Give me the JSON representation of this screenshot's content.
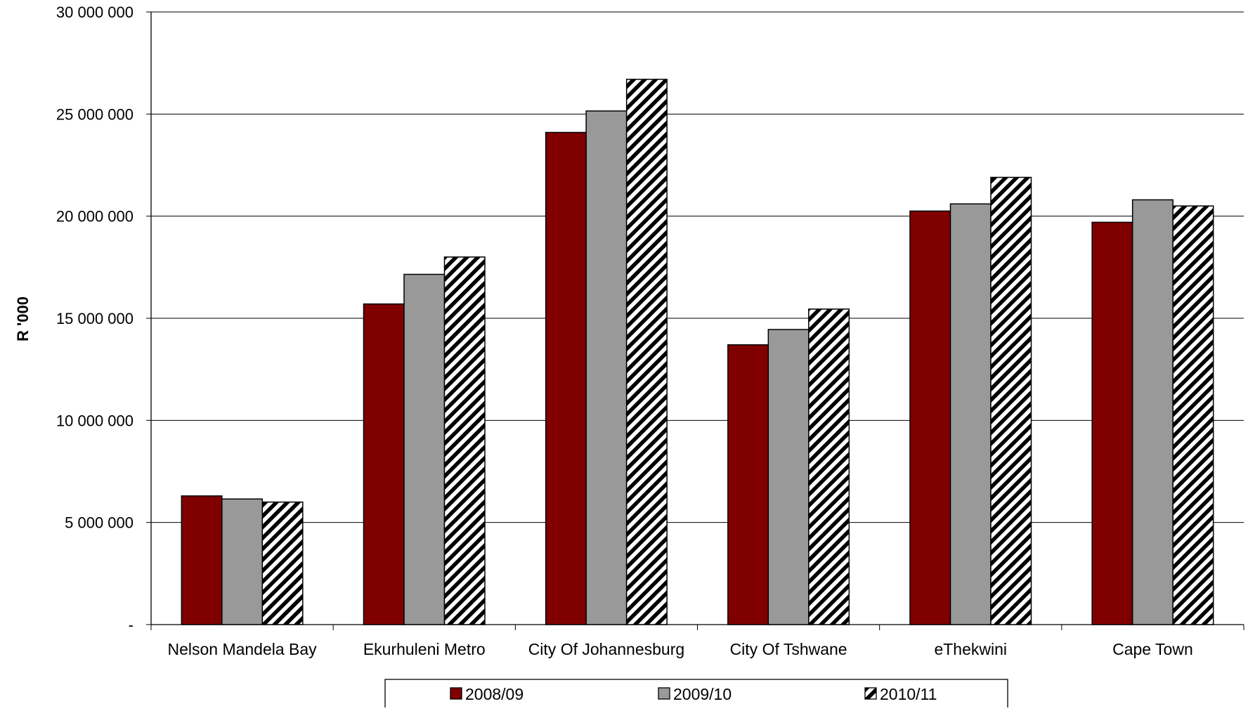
{
  "chart_data": {
    "type": "bar",
    "title": "",
    "xlabel": "",
    "ylabel": "R '000",
    "ylim": [
      0,
      30000000
    ],
    "yticks": [
      {
        "value": 0,
        "label": "-"
      },
      {
        "value": 5000000,
        "label": "5 000 000"
      },
      {
        "value": 10000000,
        "label": "10 000 000"
      },
      {
        "value": 15000000,
        "label": "15 000 000"
      },
      {
        "value": 20000000,
        "label": "20 000 000"
      },
      {
        "value": 25000000,
        "label": "25 000 000"
      },
      {
        "value": 30000000,
        "label": "30 000 000"
      }
    ],
    "grid": true,
    "legend_position": "bottom",
    "categories": [
      "Nelson Mandela Bay",
      "Ekurhuleni Metro",
      "City Of Johannesburg",
      "City Of Tshwane",
      "eThekwini",
      "Cape Town"
    ],
    "series": [
      {
        "name": "2008/09",
        "fill": "solid",
        "color": "#800000",
        "values": [
          6300000,
          15700000,
          24100000,
          13700000,
          20250000,
          19700000
        ]
      },
      {
        "name": "2009/10",
        "fill": "solid",
        "color": "#999999",
        "values": [
          6150000,
          17150000,
          25150000,
          14450000,
          20600000,
          20800000
        ]
      },
      {
        "name": "2010/11",
        "fill": "hatch",
        "color": "#000000",
        "values": [
          6000000,
          18000000,
          26700000,
          15450000,
          21900000,
          20500000
        ]
      }
    ]
  }
}
